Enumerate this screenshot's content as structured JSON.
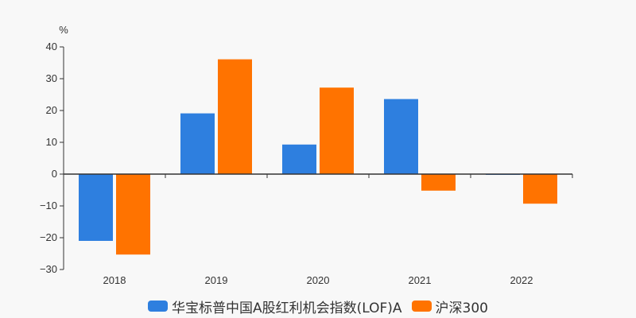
{
  "chart_data": {
    "type": "bar",
    "title": "",
    "xlabel": "",
    "ylabel": "%",
    "ylim": [
      -30,
      40
    ],
    "yticks": [
      40,
      30,
      20,
      10,
      0,
      -10,
      -20,
      -30
    ],
    "ytick_labels": [
      "40",
      "30",
      "20",
      "10",
      "0",
      "−10",
      "−20",
      "−30"
    ],
    "categories": [
      "2018",
      "2019",
      "2020",
      "2021",
      "2022"
    ],
    "series": [
      {
        "name": "华宝标普中国A股红利机会指数(LOF)A",
        "color": "#2e7fdf",
        "values": [
          -21.0,
          19.1,
          9.3,
          23.6,
          -0.1
        ]
      },
      {
        "name": "沪深300",
        "color": "#ff7300",
        "values": [
          -25.3,
          36.1,
          27.2,
          -5.2,
          -9.3
        ]
      }
    ],
    "grid": false,
    "legend_position": "bottom"
  },
  "legend": {
    "items": [
      {
        "label": "华宝标普中国A股红利机会指数(LOF)A",
        "color": "#2e7fdf"
      },
      {
        "label": "沪深300",
        "color": "#ff7300"
      }
    ]
  }
}
